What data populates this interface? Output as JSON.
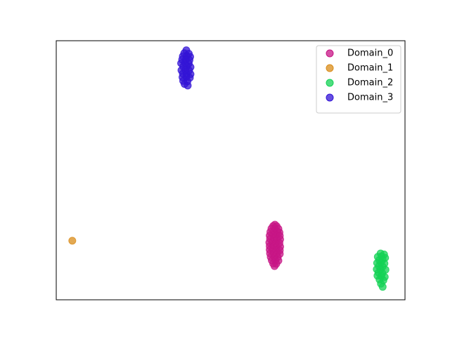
{
  "chart_data": {
    "type": "scatter",
    "legend": "upper right",
    "xlim": [
      0,
      10
    ],
    "ylim": [
      0,
      10
    ],
    "series": [
      {
        "name": "Domain_0",
        "color": "#c71585",
        "x": [
          6.27,
          6.22,
          6.32,
          6.17,
          6.27,
          6.37,
          6.14,
          6.24,
          6.34,
          6.4,
          6.12,
          6.22,
          6.31,
          6.41,
          6.13,
          6.24,
          6.33,
          6.42,
          6.11,
          6.2,
          6.3,
          6.4,
          6.12,
          6.22,
          6.32,
          6.42,
          6.12,
          6.21,
          6.31,
          6.41,
          6.13,
          6.23,
          6.33,
          6.41,
          6.15,
          6.25,
          6.35,
          6.18,
          6.28,
          6.37,
          6.22,
          6.31,
          6.26
        ],
        "values": [
          2.9,
          2.85,
          2.84,
          2.75,
          2.76,
          2.74,
          2.62,
          2.64,
          2.63,
          2.6,
          2.48,
          2.5,
          2.49,
          2.47,
          2.35,
          2.36,
          2.34,
          2.33,
          2.21,
          2.22,
          2.2,
          2.19,
          2.07,
          2.08,
          2.06,
          2.05,
          1.93,
          1.94,
          1.92,
          1.91,
          1.79,
          1.8,
          1.78,
          1.77,
          1.65,
          1.66,
          1.64,
          1.52,
          1.53,
          1.51,
          1.4,
          1.39,
          1.3
        ]
      },
      {
        "name": "Domain_1",
        "color": "#d98c1a",
        "x": [
          0.46
        ],
        "values": [
          2.28
        ]
      },
      {
        "name": "Domain_2",
        "color": "#14d255",
        "x": [
          9.3,
          9.4,
          9.22,
          9.33,
          9.43,
          9.26,
          9.36,
          9.2,
          9.31,
          9.41,
          9.25,
          9.36,
          9.19,
          9.3,
          9.44,
          9.24,
          9.35,
          9.21,
          9.32,
          9.42,
          9.27,
          9.38,
          9.31,
          9.36
        ],
        "values": [
          1.79,
          1.75,
          1.66,
          1.68,
          1.62,
          1.53,
          1.55,
          1.42,
          1.44,
          1.4,
          1.3,
          1.28,
          1.18,
          1.17,
          1.16,
          1.05,
          1.03,
          0.93,
          0.91,
          0.88,
          0.78,
          0.75,
          0.62,
          0.5
        ]
      },
      {
        "name": "Domain_3",
        "color": "#3314d6",
        "x": [
          3.73,
          3.67,
          3.8,
          3.63,
          3.74,
          3.84,
          3.61,
          3.72,
          3.82,
          3.58,
          3.69,
          3.8,
          3.64,
          3.75,
          3.85,
          3.59,
          3.7,
          3.81,
          3.63,
          3.74,
          3.85,
          3.62,
          3.73,
          3.83,
          3.64,
          3.76,
          3.68,
          3.77
        ],
        "values": [
          9.63,
          9.52,
          9.5,
          9.4,
          9.41,
          9.38,
          9.27,
          9.28,
          9.25,
          9.13,
          9.14,
          9.12,
          9.0,
          9.01,
          8.98,
          8.86,
          8.87,
          8.85,
          8.73,
          8.72,
          8.71,
          8.59,
          8.6,
          8.57,
          8.45,
          8.43,
          8.33,
          8.27
        ]
      }
    ]
  }
}
